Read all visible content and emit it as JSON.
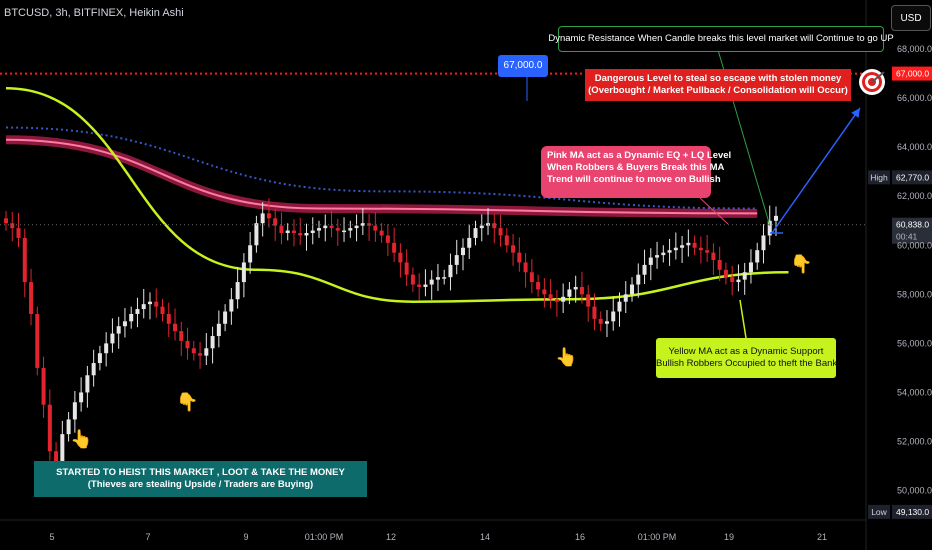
{
  "header": {
    "symbol": "BTCUSD",
    "timeframe": "3h",
    "exchange": "BITFINEX",
    "chart_style": "Heikin Ashi",
    "title": "BTCUSD, 3h, BITFINEX, Heikin Ashi"
  },
  "currency_button": "USD",
  "annotations": {
    "dynamic_resistance": "Dynamic Resistance When Candle breaks this level market will Continue to go UP",
    "dangerous_level_line1": "Dangerous Level to steal so escape with stolen money",
    "dangerous_level_line2": "(Overbought / Market Pullback / Consolidation will Occur)",
    "pink_ma_line1": "Pink MA act as a Dynamic EQ + LQ Level",
    "pink_ma_line2": "When Robbers & Buyers Break this MA",
    "pink_ma_line3": "Trend will continue to move on Bullish",
    "yellow_ma_line1": "Yellow MA act as a Dynamic Support",
    "yellow_ma_line2": "Bullish Robbers Occupied to theft the Bank",
    "heist_line1": "STARTED TO HEIST THIS MARKET , LOOT & TAKE THE MONEY",
    "heist_line2": "(Thieves are stealing Upside / Traders are Buying)",
    "level_67k": "67,000.0"
  },
  "colors": {
    "background": "#000000",
    "bull_candle": "#e6e6e6",
    "bear_candle": "#e2242f",
    "pink_ma": "#ff2d6f",
    "yellow_ma": "#c6f21e",
    "blue_ma": "#3557c9",
    "red_level": "#ff1e1e",
    "arrow": "#2962ff",
    "annotation_teal": "#0d6b6b"
  },
  "icons": [
    "pointing-hand-icon",
    "target-icon"
  ],
  "chart_data": {
    "type": "candlestick",
    "title": "BTCUSD, 3h, BITFINEX, Heikin Ashi",
    "y_axis_ticks": [
      "68,000.0",
      "66,000.0",
      "64,000.0",
      "62,000.0",
      "60,000.0",
      "58,000.0",
      "56,000.0",
      "54,000.0",
      "52,000.0",
      "50,000.0"
    ],
    "x_axis_ticks": [
      "5",
      "7",
      "9",
      "01:00 PM",
      "12",
      "14",
      "16",
      "01:00 PM",
      "19",
      "21"
    ],
    "ylim": [
      48800,
      70000
    ],
    "price_labels": [
      {
        "name": "",
        "value": "67,000.0",
        "price": 67000
      },
      {
        "name": "High",
        "value": "62,770.0",
        "price": 62770
      },
      {
        "name": "",
        "value": "60,838.0",
        "price": 60838,
        "countdown": "00:41"
      },
      {
        "name": "Low",
        "value": "49,130.0",
        "price": 49130
      }
    ],
    "horizontal_levels": [
      {
        "price": 67000,
        "style": "dotted",
        "color": "#ff1e1e"
      }
    ],
    "current_price": 60838,
    "candles_close": [
      60900,
      60700,
      60300,
      58500,
      57200,
      55000,
      53500,
      51600,
      50700,
      52300,
      52900,
      53600,
      54000,
      54700,
      55200,
      55600,
      56000,
      56400,
      56700,
      56900,
      57200,
      57400,
      57600,
      57700,
      57500,
      57200,
      56800,
      56500,
      56100,
      55800,
      55600,
      55500,
      55800,
      56300,
      56800,
      57300,
      57800,
      58500,
      59300,
      60000,
      60900,
      61300,
      61100,
      60800,
      60500,
      60600,
      60500,
      60400,
      60500,
      60600,
      60700,
      60800,
      60700,
      60600,
      60600,
      60700,
      60800,
      60900,
      60800,
      60600,
      60400,
      60100,
      59700,
      59300,
      58800,
      58400,
      58300,
      58400,
      58600,
      58700,
      58700,
      59200,
      59600,
      59900,
      60300,
      60700,
      60800,
      60900,
      60700,
      60400,
      60000,
      59700,
      59300,
      58900,
      58500,
      58200,
      58000,
      57800,
      57700,
      57900,
      58200,
      58300,
      58000,
      57500,
      57000,
      56800,
      56900,
      57300,
      57700,
      58000,
      58400,
      58800,
      59200,
      59500,
      59600,
      59700,
      59800,
      59900,
      60000,
      60100,
      59900,
      59800,
      59700,
      59400,
      59000,
      58700,
      58500,
      58600,
      58900,
      59300,
      59800,
      60400,
      61000,
      61200
    ],
    "series": [
      {
        "name": "",
        "type": "line",
        "color": "#ff2d6f",
        "description_points": [
          [
            0,
            64300
          ],
          [
            50,
            61500
          ],
          [
            120,
            61300
          ]
        ]
      },
      {
        "name": "",
        "type": "line",
        "color": "#c6f21e",
        "points": [
          [
            0,
            66400
          ],
          [
            40,
            59000
          ],
          [
            65,
            57700
          ],
          [
            90,
            57800
          ],
          [
            125,
            58900
          ]
        ]
      },
      {
        "name": "",
        "type": "line",
        "color": "#3557c9",
        "points": [
          [
            0,
            64800
          ],
          [
            60,
            62200
          ],
          [
            120,
            61500
          ]
        ]
      }
    ]
  }
}
